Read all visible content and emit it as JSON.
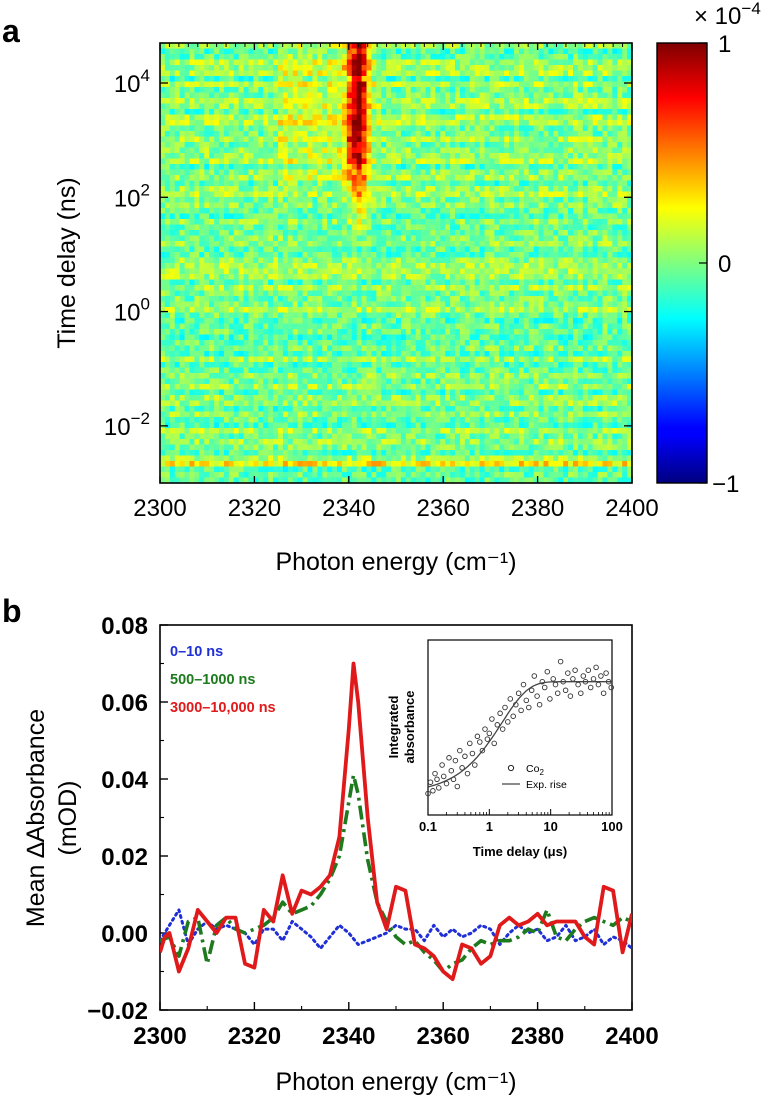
{
  "chart_data": [
    {
      "id": "a",
      "type": "heatmap",
      "panel_label": "a",
      "xlabel": "Photon energy (cm⁻¹)",
      "ylabel": "Time delay (ns)",
      "xlim": [
        2300,
        2400
      ],
      "x_ticks": [
        "2300",
        "2320",
        "2340",
        "2360",
        "2380",
        "2400"
      ],
      "y_scale": "log10",
      "ylim_log10": [
        -3,
        4.7
      ],
      "y_ticks": [
        {
          "base": "10",
          "exp": "4",
          "log": 4
        },
        {
          "base": "10",
          "exp": "2",
          "log": 2
        },
        {
          "base": "10",
          "exp": "0",
          "log": 0
        },
        {
          "base": "10",
          "exp": "−2",
          "log": -2
        }
      ],
      "colorbar": {
        "range": [
          -1,
          1
        ],
        "ticks": [
          "1",
          "0",
          "−1"
        ],
        "multiplier": "× 10",
        "multiplier_exp": "−4",
        "colormap": "jet"
      },
      "features": {
        "peak_center": 2342,
        "peak_halfwidth": 2.2,
        "peak_onset_log10": 2.3,
        "peak_max": 0.95
      }
    },
    {
      "id": "b",
      "type": "line",
      "panel_label": "b",
      "xlabel": "Photon energy (cm⁻¹)",
      "ylabel_line1": "Mean ∆Absorbance",
      "ylabel_line2": "(mOD)",
      "xlim": [
        2300,
        2400
      ],
      "ylim": [
        -0.02,
        0.08
      ],
      "x_ticks": [
        "2300",
        "2320",
        "2340",
        "2360",
        "2380",
        "2400"
      ],
      "y_ticks": [
        "0.08",
        "0.06",
        "0.04",
        "0.02",
        "0.00",
        "−0.02"
      ],
      "series": [
        {
          "name": "0–10 ns",
          "color": "#1f2fd6",
          "style": "dotted",
          "x": [
            2300,
            2302,
            2304,
            2306,
            2308,
            2310,
            2312,
            2314,
            2316,
            2318,
            2320,
            2322,
            2324,
            2326,
            2328,
            2330,
            2332,
            2334,
            2336,
            2338,
            2340,
            2342,
            2344,
            2346,
            2348,
            2350,
            2352,
            2354,
            2356,
            2358,
            2360,
            2362,
            2364,
            2366,
            2368,
            2370,
            2372,
            2374,
            2376,
            2378,
            2380,
            2382,
            2384,
            2386,
            2388,
            2390,
            2392,
            2394,
            2396,
            2398,
            2400
          ],
          "y": [
            -0.002,
            0.002,
            0.006,
            -0.003,
            0.001,
            0.003,
            0.001,
            0.002,
            0.001,
            0.0,
            -0.003,
            0.001,
            0.001,
            -0.002,
            0.003,
            0.001,
            -0.001,
            -0.004,
            -0.001,
            0.002,
            0.0,
            -0.003,
            -0.002,
            -0.001,
            0.0,
            0.002,
            0.001,
            0.001,
            -0.002,
            0.002,
            -0.001,
            0.001,
            -0.001,
            0.0,
            0.002,
            0.001,
            -0.003,
            0.0,
            0.002,
            0.0,
            0.001,
            -0.002,
            -0.001,
            0.002,
            -0.002,
            -0.001,
            0.001,
            -0.003,
            -0.001,
            -0.002,
            -0.004
          ]
        },
        {
          "name": "500–1000 ns",
          "color": "#1d7a1d",
          "style": "dashdot",
          "x": [
            2300,
            2302,
            2304,
            2306,
            2308,
            2310,
            2312,
            2314,
            2316,
            2318,
            2320,
            2322,
            2324,
            2326,
            2328,
            2330,
            2332,
            2334,
            2336,
            2338,
            2340,
            2341,
            2342,
            2344,
            2346,
            2348,
            2350,
            2352,
            2354,
            2356,
            2358,
            2360,
            2362,
            2364,
            2366,
            2368,
            2370,
            2372,
            2374,
            2376,
            2378,
            2380,
            2382,
            2384,
            2386,
            2388,
            2390,
            2392,
            2394,
            2396,
            2398,
            2400
          ],
          "y": [
            -0.002,
            -0.001,
            -0.006,
            0.003,
            0.004,
            -0.008,
            0.002,
            0.004,
            0.001,
            0.0,
            0.001,
            0.002,
            0.004,
            0.008,
            0.005,
            0.006,
            0.007,
            0.01,
            0.014,
            0.02,
            0.034,
            0.041,
            0.036,
            0.019,
            0.008,
            0.003,
            -0.001,
            -0.003,
            -0.002,
            -0.005,
            -0.007,
            -0.01,
            -0.008,
            -0.007,
            -0.004,
            -0.002,
            -0.003,
            -0.002,
            -0.002,
            -0.001,
            0.001,
            0.0,
            0.006,
            -0.001,
            -0.002,
            0.001,
            0.003,
            0.004,
            0.003,
            0.002,
            0.004,
            0.003
          ]
        },
        {
          "name": "3000–10,000 ns",
          "color": "#e01a1a",
          "style": "solid",
          "x": [
            2300,
            2301,
            2302,
            2304,
            2306,
            2308,
            2310,
            2312,
            2314,
            2316,
            2318,
            2320,
            2322,
            2324,
            2326,
            2328,
            2330,
            2332,
            2334,
            2336,
            2338,
            2340,
            2341,
            2342,
            2344,
            2346,
            2348,
            2350,
            2352,
            2354,
            2356,
            2358,
            2360,
            2362,
            2364,
            2366,
            2368,
            2370,
            2372,
            2374,
            2376,
            2378,
            2380,
            2382,
            2384,
            2386,
            2388,
            2390,
            2392,
            2394,
            2396,
            2398,
            2400
          ],
          "y": [
            -0.005,
            -0.001,
            0.0,
            -0.01,
            -0.004,
            0.006,
            0.003,
            0.0,
            0.004,
            0.004,
            -0.008,
            -0.009,
            0.006,
            0.003,
            0.015,
            0.005,
            0.011,
            0.01,
            0.012,
            0.015,
            0.025,
            0.053,
            0.07,
            0.06,
            0.03,
            0.008,
            0.001,
            0.012,
            0.011,
            -0.003,
            -0.004,
            -0.006,
            -0.01,
            -0.012,
            -0.003,
            -0.004,
            -0.008,
            -0.006,
            0.002,
            0.004,
            0.002,
            0.003,
            0.005,
            0.002,
            0.003,
            0.003,
            0.003,
            -0.001,
            -0.003,
            0.012,
            0.011,
            -0.005,
            0.005
          ]
        }
      ],
      "inset": {
        "type": "scatter",
        "xlabel": "Time delay (μs)",
        "ylabel_line1": "Integrated",
        "ylabel_line2": "absorbance",
        "x_scale": "log10",
        "xlim": [
          0.1,
          100
        ],
        "x_ticks": [
          "0.1",
          "1",
          "10",
          "100"
        ],
        "legend_marker": "Co",
        "legend_marker_sub": "2",
        "legend_line": "Exp. rise",
        "points_x": [
          0.1,
          0.11,
          0.12,
          0.13,
          0.14,
          0.15,
          0.17,
          0.18,
          0.2,
          0.22,
          0.24,
          0.26,
          0.28,
          0.3,
          0.33,
          0.36,
          0.4,
          0.44,
          0.48,
          0.53,
          0.58,
          0.64,
          0.7,
          0.77,
          0.85,
          0.93,
          1.0,
          1.1,
          1.2,
          1.35,
          1.5,
          1.65,
          1.8,
          2.0,
          2.2,
          2.45,
          2.7,
          3.0,
          3.3,
          3.6,
          4.0,
          4.4,
          4.9,
          5.4,
          6.0,
          6.6,
          7.3,
          8.0,
          8.8,
          9.7,
          11,
          12,
          13,
          14.5,
          16,
          17.5,
          19,
          21,
          23,
          25,
          28,
          31,
          34,
          37,
          41,
          45,
          50,
          55,
          60,
          66,
          73,
          80,
          88,
          97
        ],
        "points_y": [
          0.1,
          0.18,
          0.12,
          0.24,
          0.2,
          0.14,
          0.3,
          0.22,
          0.17,
          0.35,
          0.26,
          0.2,
          0.33,
          0.15,
          0.4,
          0.28,
          0.36,
          0.24,
          0.45,
          0.38,
          0.3,
          0.5,
          0.46,
          0.4,
          0.55,
          0.48,
          0.52,
          0.62,
          0.45,
          0.58,
          0.66,
          0.55,
          0.7,
          0.6,
          0.76,
          0.64,
          0.72,
          0.8,
          0.68,
          0.86,
          0.75,
          0.7,
          0.82,
          0.92,
          0.78,
          0.72,
          0.88,
          0.84,
          0.95,
          0.76,
          0.9,
          0.86,
          0.8,
          1.02,
          0.88,
          0.82,
          0.94,
          0.78,
          0.9,
          0.96,
          0.86,
          0.8,
          0.92,
          0.88,
          0.96,
          0.84,
          0.9,
          0.98,
          0.86,
          0.92,
          0.8,
          0.94,
          0.88,
          0.84
        ],
        "fit": {
          "model": "y = 0.85 (1 - exp(-t / tau))",
          "tau_us": 1.6
        }
      }
    }
  ]
}
